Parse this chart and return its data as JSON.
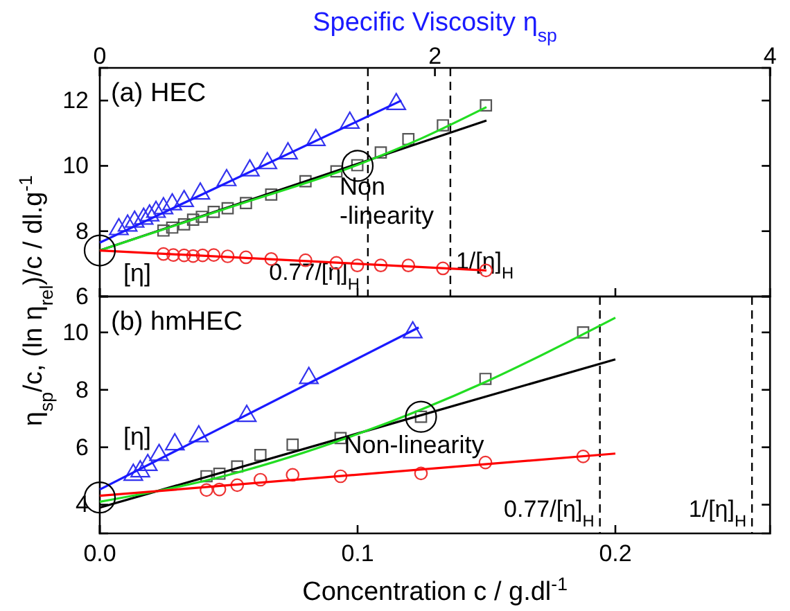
{
  "chart_data": [
    {
      "type": "scatter",
      "title": "(a) HEC",
      "x2label": "Specific Viscosity η$_{sp}$",
      "ylabel": "η$_{sp}$/c, (ln η$_{rel}$)/c / dl.g$^{-1}$",
      "xlim": [
        0,
        0.26
      ],
      "xticks": [
        0,
        0.1,
        0.2
      ],
      "tick_labels": "y",
      "x2lim": [
        0,
        4
      ],
      "x2ticks": [
        0,
        2,
        4
      ],
      "ylim": [
        6,
        13
      ],
      "yticks": [
        6,
        8,
        10,
        12
      ],
      "grid": false,
      "series": [
        {
          "type": "scatter",
          "marker": "triangle",
          "color": "#3333ee",
          "x": [
            0.0074,
            0.0108,
            0.0135,
            0.017,
            0.0193,
            0.0218,
            0.0247,
            0.0281,
            0.0327,
            0.039,
            0.0492,
            0.0582,
            0.065,
            0.073,
            0.0838,
            0.097,
            0.115
          ],
          "values": [
            8.06,
            8.17,
            8.29,
            8.38,
            8.48,
            8.59,
            8.7,
            8.82,
            8.92,
            9.15,
            9.56,
            9.86,
            10.08,
            10.38,
            10.79,
            11.32,
            11.89
          ]
        },
        {
          "type": "scatter",
          "marker": "square",
          "color": "#555555",
          "x": [
            0.0247,
            0.0281,
            0.0327,
            0.0362,
            0.0396,
            0.0442,
            0.0496,
            0.0567,
            0.0665,
            0.0798,
            0.0918,
            0.0999,
            0.109,
            0.1197,
            0.1331,
            0.1498
          ],
          "values": [
            8.02,
            8.11,
            8.21,
            8.35,
            8.44,
            8.59,
            8.7,
            8.86,
            9.12,
            9.53,
            9.83,
            10.02,
            10.41,
            10.82,
            11.24,
            11.85
          ]
        },
        {
          "type": "scatter",
          "marker": "circle",
          "color": "#ee3333",
          "x": [
            0.0247,
            0.0285,
            0.0327,
            0.0362,
            0.0399,
            0.0442,
            0.0496,
            0.0567,
            0.0665,
            0.0798,
            0.0918,
            0.0999,
            0.109,
            0.1197,
            0.1331,
            0.1498
          ],
          "values": [
            7.3,
            7.27,
            7.26,
            7.24,
            7.26,
            7.27,
            7.23,
            7.2,
            7.15,
            7.11,
            7.03,
            6.95,
            6.95,
            6.95,
            6.86,
            6.8
          ]
        },
        {
          "type": "line",
          "color": "#1a1aff",
          "x": [
            0,
            0.117
          ],
          "values": [
            7.65,
            12.0
          ]
        },
        {
          "type": "line",
          "color": "#000000",
          "x": [
            0,
            0.15
          ],
          "values": [
            7.41,
            11.39
          ]
        },
        {
          "type": "line",
          "color": "#22dd22",
          "x": [
            0,
            0.05,
            0.1,
            0.125,
            0.15
          ],
          "values": [
            7.41,
            8.72,
            10.03,
            10.85,
            11.8
          ]
        },
        {
          "type": "line",
          "color": "#ff0000",
          "x": [
            0,
            0.15
          ],
          "values": [
            7.41,
            6.8
          ]
        }
      ],
      "ref_lines": [
        {
          "axis": "x",
          "value": 0.104,
          "label": "0.77/[η]$_{H}$",
          "line_style": "dashed"
        },
        {
          "axis": "x",
          "value": 0.136,
          "label": "1/[η]$_{H}$",
          "line_style": "dashed"
        }
      ],
      "annotations": [
        {
          "text": "[η]",
          "x": 0,
          "y": 7.41
        },
        {
          "text": "Non\n-linearity",
          "x": 0.1,
          "y": 10.0
        }
      ]
    },
    {
      "type": "scatter",
      "title": "(b) hmHEC",
      "xlabel": "Concentration c / g.dl$^{-1}$",
      "xlim": [
        0,
        0.26
      ],
      "xticks": [
        {
          "value": 0,
          "label": "0.0"
        },
        {
          "value": 0.1,
          "label": "0.1"
        },
        {
          "value": 0.2,
          "label": "0.2"
        }
      ],
      "ylim": [
        3,
        11.25
      ],
      "yticks": [
        4,
        6,
        8,
        10
      ],
      "grid": false,
      "series": [
        {
          "type": "scatter",
          "marker": "triangle",
          "color": "#3333ee",
          "x": [
            0.013,
            0.0157,
            0.0186,
            0.023,
            0.0291,
            0.0384,
            0.057,
            0.0811,
            0.1214
          ],
          "values": [
            5.04,
            5.16,
            5.38,
            5.73,
            6.1,
            6.38,
            7.09,
            8.41,
            10.0
          ]
        },
        {
          "type": "scatter",
          "marker": "square",
          "color": "#555555",
          "x": [
            0.0414,
            0.0464,
            0.0533,
            0.0623,
            0.0748,
            0.0934,
            0.1246,
            0.1496,
            0.1875
          ],
          "values": [
            4.99,
            5.08,
            5.33,
            5.73,
            6.09,
            6.32,
            7.06,
            8.38,
            10.0
          ]
        },
        {
          "type": "scatter",
          "marker": "circle",
          "color": "#ee3333",
          "x": [
            0.0414,
            0.0464,
            0.0533,
            0.0623,
            0.0748,
            0.0934,
            0.1246,
            0.1496,
            0.1875
          ],
          "values": [
            4.51,
            4.53,
            4.68,
            4.87,
            5.04,
            4.99,
            5.09,
            5.47,
            5.68
          ]
        },
        {
          "type": "line",
          "color": "#1a1aff",
          "x": [
            0,
            0.1237
          ],
          "values": [
            4.53,
            10.17
          ]
        },
        {
          "type": "line",
          "color": "#000000",
          "x": [
            0,
            0.2
          ],
          "values": [
            3.9,
            9.06
          ]
        },
        {
          "type": "line",
          "color": "#22dd22",
          "x": [
            0,
            0.05,
            0.1,
            0.15,
            0.2
          ],
          "values": [
            4.1,
            5.04,
            6.46,
            8.29,
            10.51
          ]
        },
        {
          "type": "line",
          "color": "#ff0000",
          "x": [
            0,
            0.2
          ],
          "values": [
            4.31,
            5.78
          ]
        }
      ],
      "ref_lines": [
        {
          "axis": "x",
          "value": 0.194,
          "label": "0.77/[η]$_{H}$",
          "line_style": "dashed"
        },
        {
          "axis": "x",
          "value": 0.253,
          "label": "1/[η]$_{H}$",
          "line_style": "dashed"
        }
      ],
      "annotations": [
        {
          "text": "[η]",
          "x": 0,
          "y": 4.25
        },
        {
          "text": "Non-linearity",
          "x": 0.1246,
          "y": 7.06
        }
      ]
    }
  ]
}
